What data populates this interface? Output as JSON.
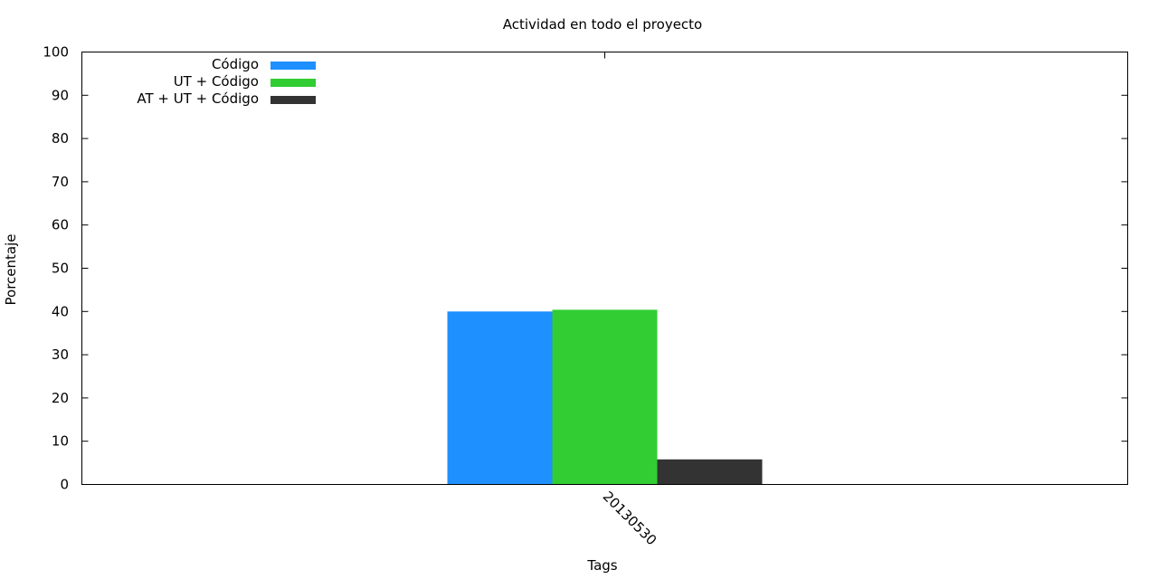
{
  "chart_data": {
    "type": "bar",
    "title": "Actividad en todo el proyecto",
    "xlabel": "Tags",
    "ylabel": "Porcentaje",
    "categories": [
      "20130530"
    ],
    "ylim": [
      0,
      100
    ],
    "yticks": [
      0,
      10,
      20,
      30,
      40,
      50,
      60,
      70,
      80,
      90,
      100
    ],
    "grid": false,
    "legend_position": "top-left",
    "series": [
      {
        "name": "Código",
        "color": "#1e90ff",
        "values": [
          40
        ]
      },
      {
        "name": "UT + Código",
        "color": "#32cd32",
        "values": [
          40.4
        ]
      },
      {
        "name": "AT + UT + Código",
        "color": "#333333",
        "values": [
          5.8
        ]
      }
    ]
  }
}
